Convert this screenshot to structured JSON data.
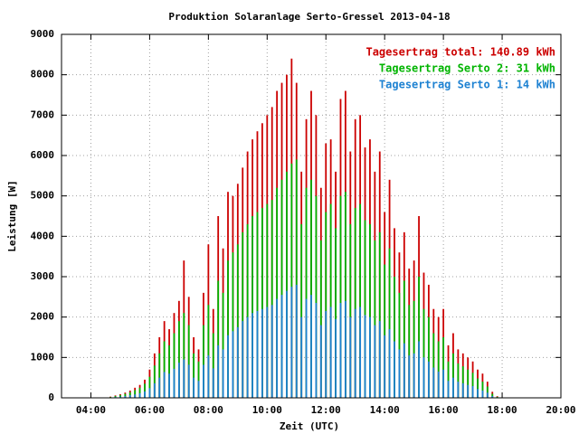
{
  "chart_data": {
    "type": "bar",
    "title": "Produktion Solaranlage Serto-Gressel 2013-04-18",
    "x_label": "Zeit (UTC)",
    "y_label": "Leistung [W]",
    "x": [
      "04:40",
      "04:50",
      "05:00",
      "05:10",
      "05:20",
      "05:30",
      "05:40",
      "05:50",
      "06:00",
      "06:10",
      "06:20",
      "06:30",
      "06:40",
      "06:50",
      "07:00",
      "07:10",
      "07:20",
      "07:30",
      "07:40",
      "07:50",
      "08:00",
      "08:10",
      "08:20",
      "08:30",
      "08:40",
      "08:50",
      "09:00",
      "09:10",
      "09:20",
      "09:30",
      "09:40",
      "09:50",
      "10:00",
      "10:10",
      "10:20",
      "10:30",
      "10:40",
      "10:50",
      "11:00",
      "11:10",
      "11:20",
      "11:30",
      "11:40",
      "11:50",
      "12:00",
      "12:10",
      "12:20",
      "12:30",
      "12:40",
      "12:50",
      "13:00",
      "13:10",
      "13:20",
      "13:30",
      "13:40",
      "13:50",
      "14:00",
      "14:10",
      "14:20",
      "14:30",
      "14:40",
      "14:50",
      "15:00",
      "15:10",
      "15:20",
      "15:30",
      "15:40",
      "15:50",
      "16:00",
      "16:10",
      "16:20",
      "16:30",
      "16:40",
      "16:50",
      "17:00",
      "17:10",
      "17:20",
      "17:30",
      "17:40",
      "17:50"
    ],
    "series": [
      {
        "name": "Tagesertrag total: 140.89 kWh",
        "color": "#cc0000",
        "values": [
          30,
          60,
          90,
          130,
          180,
          250,
          320,
          450,
          700,
          1100,
          1500,
          1900,
          1700,
          2100,
          2400,
          3400,
          2500,
          1500,
          1200,
          2600,
          3800,
          2200,
          4500,
          3700,
          5100,
          5000,
          5300,
          5700,
          6100,
          6400,
          6600,
          6800,
          7000,
          7200,
          7600,
          7800,
          8000,
          8400,
          7800,
          5600,
          6900,
          7600,
          7000,
          5200,
          6300,
          6400,
          5600,
          7400,
          7600,
          6100,
          6900,
          7000,
          6200,
          6400,
          5600,
          6100,
          4600,
          5400,
          4200,
          3600,
          4100,
          3200,
          3400,
          4500,
          3100,
          2800,
          2200,
          2000,
          2200,
          1300,
          1600,
          1200,
          1100,
          1000,
          900,
          700,
          600,
          400,
          150,
          40
        ]
      },
      {
        "name": "Tagesertrag Serto 2: 31 kWh",
        "color": "#00b400",
        "values": [
          20,
          45,
          70,
          100,
          140,
          190,
          250,
          350,
          520,
          800,
          1100,
          1400,
          1300,
          1600,
          1900,
          2100,
          1800,
          1100,
          900,
          1800,
          2300,
          1600,
          2900,
          2600,
          3400,
          3600,
          3800,
          4100,
          4300,
          4500,
          4600,
          4700,
          4800,
          4900,
          5200,
          5400,
          5600,
          5800,
          5900,
          4300,
          5200,
          5400,
          5000,
          3900,
          4600,
          4800,
          4200,
          5000,
          5100,
          4300,
          4700,
          4800,
          4400,
          4300,
          3900,
          4100,
          3300,
          3700,
          3000,
          2600,
          2900,
          2300,
          2400,
          3000,
          2200,
          2000,
          1600,
          1400,
          1500,
          900,
          1100,
          850,
          780,
          700,
          620,
          480,
          400,
          280,
          100,
          25
        ]
      },
      {
        "name": "Tagesertrag Serto 1: 14 kWh",
        "color": "#1e82d2",
        "values": [
          10,
          20,
          30,
          45,
          65,
          85,
          115,
          160,
          240,
          360,
          500,
          640,
          600,
          720,
          870,
          950,
          820,
          500,
          420,
          820,
          1050,
          730,
          1300,
          1200,
          1550,
          1650,
          1750,
          1900,
          2000,
          2100,
          2150,
          2200,
          2250,
          2300,
          2450,
          2550,
          2650,
          2750,
          2800,
          2000,
          2450,
          2550,
          2350,
          1800,
          2150,
          2250,
          1950,
          2350,
          2400,
          2000,
          2200,
          2250,
          2050,
          2000,
          1800,
          1900,
          1550,
          1700,
          1400,
          1200,
          1350,
          1050,
          1100,
          1400,
          1000,
          900,
          750,
          650,
          700,
          420,
          500,
          400,
          360,
          320,
          290,
          220,
          180,
          130,
          45,
          12
        ]
      }
    ],
    "xlim": [
      3,
      20
    ],
    "xticks": [
      {
        "value": 4,
        "label": "04:00"
      },
      {
        "value": 6,
        "label": "06:00"
      },
      {
        "value": 8,
        "label": "08:00"
      },
      {
        "value": 10,
        "label": "10:00"
      },
      {
        "value": 12,
        "label": "12:00"
      },
      {
        "value": 14,
        "label": "14:00"
      },
      {
        "value": 16,
        "label": "16:00"
      },
      {
        "value": 18,
        "label": "18:00"
      },
      {
        "value": 20,
        "label": "20:00"
      }
    ],
    "ylim": [
      0,
      9000
    ],
    "yticks": [
      0,
      1000,
      2000,
      3000,
      4000,
      5000,
      6000,
      7000,
      8000,
      9000
    ],
    "grid": true,
    "legend": "upper right"
  }
}
